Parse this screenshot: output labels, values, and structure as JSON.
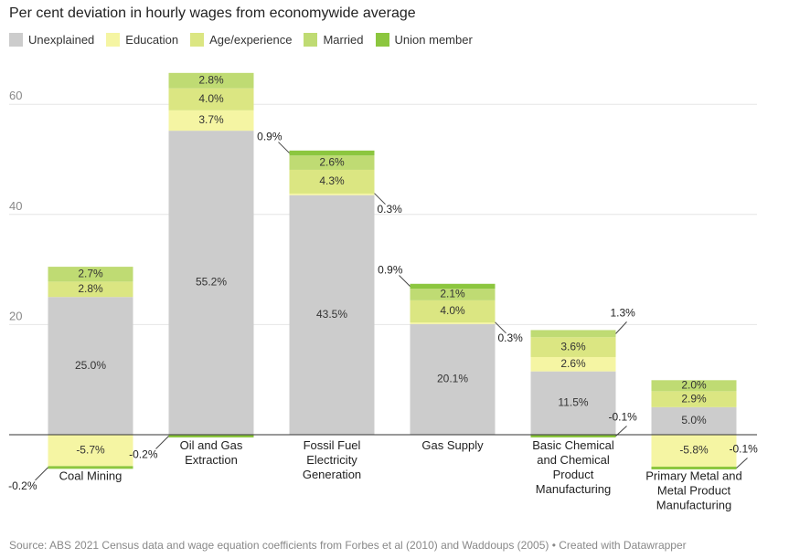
{
  "title": "Per cent deviation in hourly wages from economywide average",
  "source": "Source: ABS 2021 Census data and wage equation coefficients from Forbes et al (2010) and Waddoups (2005) • Created with Datawrapper",
  "chart_data": {
    "type": "bar",
    "stacked": true,
    "title": "Per cent deviation in hourly wages from economywide average",
    "xlabel": "",
    "ylabel": "",
    "ylim": [
      -7,
      66
    ],
    "yticks": [
      20,
      40,
      60
    ],
    "grid": true,
    "legend_position": "top-left",
    "categories": [
      [
        "Coal Mining"
      ],
      [
        "Oil and Gas",
        "Extraction"
      ],
      [
        "Fossil Fuel",
        "Electricity",
        "Generation"
      ],
      [
        "Gas Supply"
      ],
      [
        "Basic Chemical",
        "and Chemical",
        "Product",
        "Manufacturing"
      ],
      [
        "Primary Metal and",
        "Metal Product",
        "Manufacturing"
      ]
    ],
    "series": [
      {
        "name": "Unexplained",
        "color": "#cccccc",
        "values": [
          25.0,
          55.2,
          43.5,
          20.1,
          11.5,
          5.0
        ],
        "labels": [
          "25.0%",
          "55.2%",
          "43.5%",
          "20.1%",
          "11.5%",
          "5.0%"
        ]
      },
      {
        "name": "Education",
        "color": "#f5f5a3",
        "values": [
          -5.7,
          3.7,
          0.3,
          0.3,
          2.6,
          -5.8
        ],
        "labels": [
          "-5.7%",
          "3.7%",
          "0.3%",
          "0.3%",
          "2.6%",
          "-5.8%"
        ]
      },
      {
        "name": "Age/experience",
        "color": "#dbe682",
        "values": [
          2.8,
          4.0,
          4.3,
          4.0,
          3.6,
          2.9
        ],
        "labels": [
          "2.8%",
          "4.0%",
          "4.3%",
          "4.0%",
          "3.6%",
          "2.9%"
        ]
      },
      {
        "name": "Married",
        "color": "#bfdb73",
        "values": [
          2.7,
          2.8,
          2.6,
          2.1,
          1.3,
          2.0
        ],
        "labels": [
          "2.7%",
          "2.8%",
          "2.6%",
          "2.1%",
          "1.3%",
          "2.0%"
        ]
      },
      {
        "name": "Union member",
        "color": "#8cc63f",
        "values": [
          -0.2,
          -0.2,
          0.9,
          0.9,
          -0.1,
          -0.1
        ],
        "labels": [
          "-0.2%",
          "-0.2%",
          "0.9%",
          "0.9%",
          "-0.1%",
          "-0.1%"
        ]
      }
    ]
  }
}
